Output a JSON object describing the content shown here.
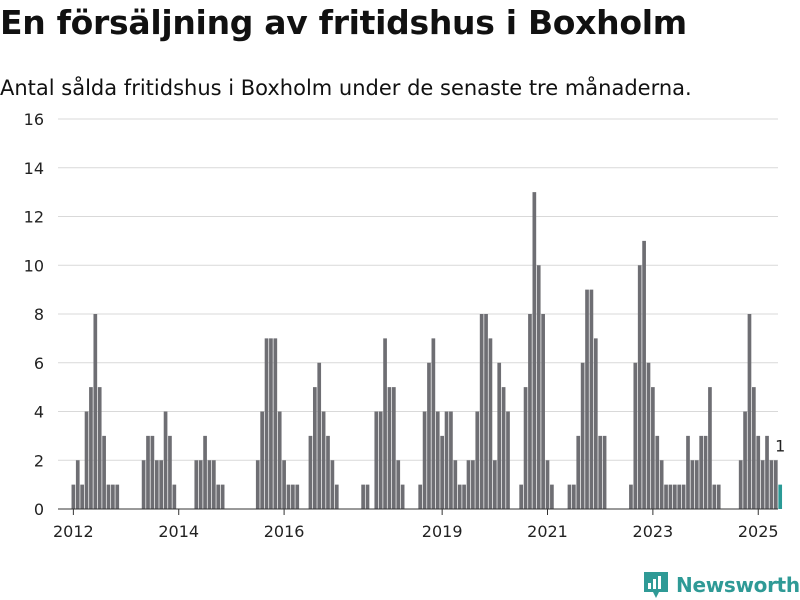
{
  "header": {
    "title": "En försäljning av fritidshus i Boxholm",
    "subtitle": "Antal sålda fritidshus i Boxholm under de senaste tre månaderna."
  },
  "brand": {
    "name": "Newsworthy",
    "icon": "newsworthy-chart-icon",
    "color": "#2f9a96"
  },
  "chart_data": {
    "type": "bar",
    "title": "En försäljning av fritidshus i Boxholm",
    "subtitle": "Antal sålda fritidshus i Boxholm under de senaste tre månaderna.",
    "xlabel": "",
    "ylabel": "",
    "x_range": [
      "2011-10",
      "2025-06"
    ],
    "ylim": [
      0,
      16
    ],
    "y_ticks": [
      "0",
      "2",
      "4",
      "6",
      "8",
      "10",
      "12",
      "14",
      "16"
    ],
    "x_ticks": [
      {
        "label": "2012",
        "at": "2012-01"
      },
      {
        "label": "2014",
        "at": "2014-01"
      },
      {
        "label": "2016",
        "at": "2016-01"
      },
      {
        "label": "2019",
        "at": "2019-01"
      },
      {
        "label": "2021",
        "at": "2021-01"
      },
      {
        "label": "2023",
        "at": "2023-01"
      },
      {
        "label": "2025",
        "at": "2025-01"
      }
    ],
    "grid": true,
    "bar_color": "#6e6e73",
    "highlight_color": "#2a9a96",
    "start_month": "2011-11",
    "values": [
      0,
      0,
      1,
      2,
      1,
      4,
      5,
      8,
      5,
      3,
      1,
      1,
      1,
      0,
      0,
      0,
      0,
      0,
      2,
      3,
      3,
      2,
      2,
      4,
      3,
      1,
      0,
      0,
      0,
      0,
      2,
      2,
      3,
      2,
      2,
      1,
      1,
      0,
      0,
      0,
      0,
      0,
      0,
      0,
      2,
      4,
      7,
      7,
      7,
      4,
      2,
      1,
      1,
      1,
      0,
      0,
      3,
      5,
      6,
      4,
      3,
      2,
      1,
      0,
      0,
      0,
      0,
      0,
      1,
      1,
      0,
      4,
      4,
      7,
      5,
      5,
      2,
      1,
      0,
      0,
      0,
      1,
      4,
      6,
      7,
      4,
      3,
      4,
      4,
      2,
      1,
      1,
      2,
      2,
      4,
      8,
      8,
      7,
      2,
      6,
      5,
      4,
      0,
      0,
      1,
      5,
      8,
      13,
      10,
      8,
      2,
      1,
      0,
      0,
      0,
      1,
      1,
      3,
      6,
      9,
      9,
      7,
      3,
      3,
      0,
      0,
      0,
      0,
      0,
      1,
      6,
      10,
      11,
      6,
      5,
      3,
      2,
      1,
      1,
      1,
      1,
      1,
      3,
      2,
      2,
      3,
      3,
      5,
      1,
      1,
      0,
      0,
      0,
      0,
      2,
      4,
      8,
      5,
      3,
      2,
      3,
      2,
      2,
      1
    ],
    "highlight_last": true,
    "annotation": {
      "text": "1",
      "target": "last"
    }
  }
}
